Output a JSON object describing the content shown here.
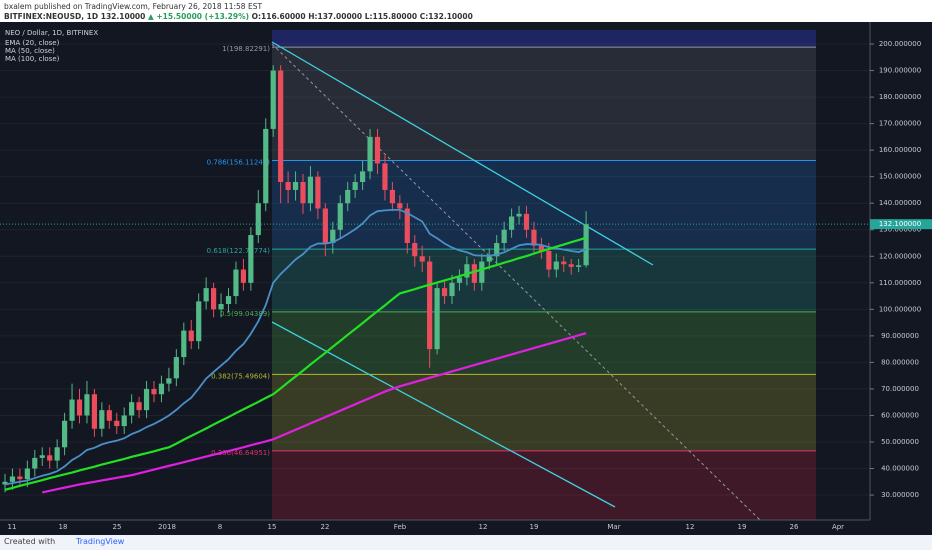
{
  "header": {
    "byline": "bxalem published on TradingView.com, February 26, 2018 11:58 EST",
    "symbol": "BITFINEX:NEOUSD, 1D",
    "last": "132.10000",
    "change": "▲ +15.50000 (+13.29%)",
    "ohlc": "O:116.60000 H:137.00000 L:115.80000 C:132.10000"
  },
  "footer": {
    "created": "Created with",
    "brand": "TradingView"
  },
  "chart_data": {
    "type": "candlestick",
    "title": "NEO / Dollar, 1D, BITFINEX",
    "up_color": "#53b987",
    "down_color": "#eb4d5c",
    "open": [
      34,
      35,
      37,
      36,
      40,
      44,
      45,
      43,
      48,
      58,
      66,
      60,
      68,
      55,
      62,
      58,
      56,
      60,
      65,
      62,
      70,
      68,
      72,
      74,
      82,
      92,
      88,
      103,
      108,
      100,
      102,
      105,
      115,
      110,
      128,
      140,
      168,
      190,
      148,
      145,
      148,
      140,
      150,
      138,
      125,
      130,
      140,
      145,
      148,
      152,
      165,
      155,
      145,
      140,
      138,
      125,
      120,
      118,
      85,
      108,
      105,
      110,
      112,
      117,
      110,
      118,
      120,
      125,
      130,
      135,
      136,
      130,
      124,
      122,
      115,
      118,
      117,
      116,
      116.6
    ],
    "high": [
      38,
      40,
      40,
      43,
      47,
      48,
      48,
      51,
      61,
      72,
      70,
      73,
      70,
      65,
      64,
      61,
      63,
      68,
      67,
      73,
      73,
      75,
      78,
      85,
      95,
      96,
      106,
      112,
      110,
      106,
      108,
      118,
      119,
      131,
      145,
      172,
      192,
      192,
      152,
      152,
      151,
      154,
      152,
      140,
      133,
      143,
      148,
      151,
      156,
      168,
      168,
      158,
      148,
      143,
      140,
      128,
      124,
      120,
      110,
      111,
      113,
      115,
      120,
      119,
      121,
      123,
      128,
      133,
      138,
      139,
      139,
      133,
      127,
      125,
      121,
      120,
      119,
      119,
      137
    ],
    "low": [
      31,
      32,
      33,
      33,
      37,
      41,
      40,
      40,
      45,
      55,
      57,
      57,
      52,
      52,
      55,
      53,
      53,
      57,
      59,
      59,
      65,
      65,
      69,
      71,
      79,
      85,
      85,
      100,
      97,
      97,
      99,
      102,
      107,
      107,
      125,
      137,
      165,
      140,
      140,
      141,
      136,
      137,
      134,
      120,
      121,
      127,
      137,
      142,
      145,
      149,
      151,
      141,
      137,
      134,
      121,
      116,
      114,
      78,
      83,
      102,
      102,
      107,
      109,
      107,
      107,
      115,
      117,
      122,
      127,
      132,
      127,
      121,
      119,
      112,
      112,
      114,
      113,
      114,
      115.8
    ],
    "close": [
      35,
      37,
      36,
      40,
      44,
      45,
      43,
      48,
      58,
      66,
      60,
      68,
      55,
      62,
      58,
      56,
      60,
      65,
      62,
      70,
      68,
      72,
      74,
      82,
      92,
      88,
      103,
      108,
      100,
      102,
      105,
      115,
      110,
      128,
      140,
      168,
      190,
      148,
      145,
      148,
      140,
      150,
      138,
      125,
      130,
      140,
      145,
      148,
      152,
      165,
      155,
      145,
      140,
      138,
      125,
      120,
      118,
      85,
      108,
      105,
      110,
      112,
      117,
      110,
      118,
      120,
      125,
      130,
      135,
      136,
      130,
      124,
      122,
      115,
      118,
      117,
      116,
      116.6,
      132.1
    ],
    "series": [
      {
        "name": "EMA (20, close)",
        "color": "#4a90c8",
        "values": [
          34,
          34.5,
          35,
          35.5,
          36.4,
          37.3,
          38,
          39,
          40.8,
          43.2,
          44.8,
          47,
          47.8,
          49.1,
          49.9,
          50.5,
          51.4,
          53,
          54.1,
          55.6,
          56.8,
          58.3,
          60,
          62.1,
          64.6,
          66.7,
          70.2,
          73.9,
          76.4,
          78.8,
          81.2,
          84.4,
          86.9,
          90.8,
          95.5,
          101.6,
          110,
          113.3,
          116,
          118.8,
          120.8,
          123.6,
          124.8,
          124.8,
          125.3,
          126.7,
          128.4,
          130.2,
          132.3,
          135.4,
          137,
          137.3,
          137.5,
          137.5,
          136.3,
          134.7,
          133.1,
          128.5,
          126.8,
          124.8,
          123.3,
          122.2,
          121.5,
          120.4,
          120.2,
          120.2,
          120.6,
          121.5,
          122.8,
          124.1,
          124.6,
          124.5,
          124.3,
          123.4,
          123,
          122.5,
          122,
          121.6,
          122.6
        ]
      },
      {
        "name": "MA (50, close)",
        "color": "#22e022",
        "values": [
          32,
          32.7,
          33.5,
          34.2,
          34.9,
          35.6,
          36.4,
          37.1,
          37.8,
          38.5,
          39.3,
          40,
          40.7,
          41.5,
          42.2,
          42.9,
          43.6,
          44.4,
          45.1,
          45.8,
          46.5,
          47.3,
          48,
          49.4,
          50.9,
          52.3,
          53.7,
          55.1,
          56.6,
          58,
          59.4,
          60.9,
          62.3,
          63.7,
          65.1,
          66.6,
          68,
          70.2,
          72.5,
          74.7,
          76.9,
          79.2,
          81.4,
          83.6,
          85.9,
          88.1,
          90.4,
          92.6,
          94.8,
          97.1,
          99.3,
          101.5,
          103.8,
          106,
          106.8,
          107.6,
          108.5,
          109.3,
          110.1,
          110.9,
          111.7,
          112.5,
          113.4,
          114.2,
          115,
          115.9,
          116.7,
          117.6,
          118.4,
          119.3,
          120.1,
          121,
          121.9,
          122.7,
          123.6,
          124.4,
          125.3,
          126.1,
          127
        ]
      },
      {
        "name": "MA (100, close)",
        "color": "#e020e0",
        "values": [
          null,
          null,
          null,
          null,
          null,
          31,
          31.6,
          32.2,
          32.8,
          33.4,
          34,
          34.5,
          35,
          35.5,
          36,
          36.5,
          37,
          37.5,
          38.2,
          38.9,
          39.6,
          40.3,
          41,
          41.7,
          42.4,
          43.1,
          43.8,
          44.5,
          45.2,
          45.9,
          46.6,
          47.3,
          48,
          48.8,
          49.5,
          50.2,
          51,
          52.2,
          53.4,
          54.6,
          55.8,
          57,
          58.2,
          59.4,
          60.6,
          61.8,
          63,
          64.2,
          65.4,
          66.6,
          67.8,
          69,
          70,
          71,
          71.8,
          72.6,
          73.4,
          74.2,
          75,
          75.8,
          76.6,
          77.4,
          78.2,
          79,
          79.8,
          80.6,
          81.4,
          82.2,
          83,
          83.8,
          84.6,
          85.4,
          86.2,
          87,
          87.8,
          88.6,
          89.4,
          90.2,
          91
        ]
      }
    ],
    "xtick_labels": [
      "11",
      "18",
      "25",
      "2018",
      "8",
      "15",
      "22",
      "Feb",
      "12",
      "19",
      "Mar",
      "12",
      "19",
      "26",
      "Apr"
    ],
    "ylim": [
      20.6,
      208.3
    ],
    "yticks": [
      {
        "value": 30,
        "label": "30.000000"
      },
      {
        "value": 40,
        "label": "40.000000"
      },
      {
        "value": 50,
        "label": "50.000000"
      },
      {
        "value": 60,
        "label": "60.000000"
      },
      {
        "value": 70,
        "label": "70.000000"
      },
      {
        "value": 80,
        "label": "80.000000"
      },
      {
        "value": 90,
        "label": "90.000000"
      },
      {
        "value": 100,
        "label": "100.000000"
      },
      {
        "value": 110,
        "label": "110.000000"
      },
      {
        "value": 120,
        "label": "120.000000"
      },
      {
        "value": 130,
        "label": "130.000000"
      },
      {
        "value": 140,
        "label": "140.000000"
      },
      {
        "value": 150,
        "label": "150.000000"
      },
      {
        "value": 160,
        "label": "160.000000"
      },
      {
        "value": 170,
        "label": "170.000000"
      },
      {
        "value": 180,
        "label": "180.000000"
      },
      {
        "value": 190,
        "label": "190.000000"
      },
      {
        "value": 200,
        "label": "200.000000"
      }
    ],
    "grid": true,
    "last_price": {
      "value": 132.1,
      "label": "132.100000",
      "color": "#26a69a"
    },
    "fib_levels": [
      {
        "value": 198.82291,
        "label": "1(198.82291)",
        "color": "#9598a1",
        "band": "rgba(120,123,134,0.22)"
      },
      {
        "value": 156.11247,
        "label": "0.786(156.11247)",
        "color": "#2196f3",
        "band": "rgba(33,110,200,0.25)"
      },
      {
        "value": 122.71774,
        "label": "0.618(122.71774)",
        "color": "#26a69a",
        "band": "rgba(38,150,140,0.25)"
      },
      {
        "value": 99.04389,
        "label": "0.5(99.04389)",
        "color": "#4caf50",
        "band": "rgba(76,160,60,0.28)"
      },
      {
        "value": 75.49604,
        "label": "0.382(75.49604)",
        "color": "#b5b82e",
        "band": "rgba(140,140,40,0.32)"
      },
      {
        "value": 46.64951,
        "label": "0.236(46.64951)",
        "color": "#e0306a",
        "band": "rgba(140,30,50,0.38)"
      }
    ]
  }
}
